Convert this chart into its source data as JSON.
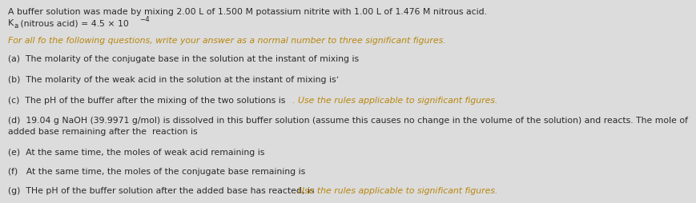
{
  "bg_color": "#dcdcdc",
  "text_color": "#2a2a2a",
  "orange_color": "#b8860b",
  "line1": "A buffer solution was made by mixing 2.00 L of 1.500 M potassium nitrite with 1.00 L of 1.476 M nitrous acid.",
  "line2_K": "K",
  "line2_a": "a",
  "line2_rest": " (nitrous acid) = 4.5 × 10",
  "line2_exp": "−4",
  "instruction": "For all fo the following questions, write your answer as a normal number to three significant figures.",
  "q_a": "(a)  The molarity of the conjugate base in the solution at the instant of mixing is",
  "q_b": "(b)  The molarity of the weak acid in the solution at the instant of mixing isʼ",
  "q_c": "(c)  The pH of the buffer after the mixing of the two solutions is",
  "q_d1": "(d)  19.04 g NaOH (39.9971 g/mol) is dissolved in this buffer solution (assume this causes no change in the volume of the solution) and reacts. The mole of",
  "q_d2": "added base remaining after the  reaction is",
  "q_e": "(e)  At the same time, the moles of weak acid remaining is",
  "q_f": "(f)   At the same time, the moles of the conjugate base remaining is",
  "q_g": "(g)  THe pH of the buffer solution after the added base has reacted, is",
  "side_c": ". Use the rules applicable to significant figures.",
  "side_g": ". Use the rules applicable to significant figures.",
  "fs": 7.8,
  "fs_small": 6.2
}
